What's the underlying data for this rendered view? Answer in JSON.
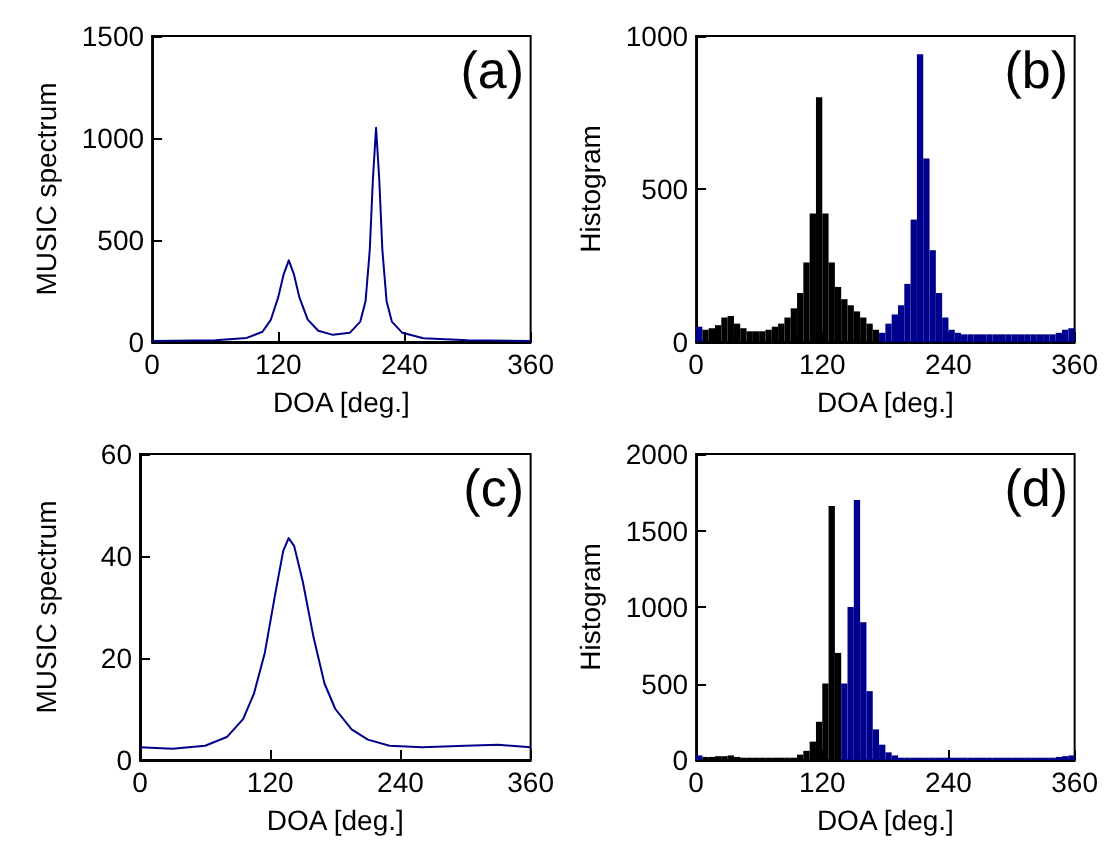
{
  "chart_data": [
    {
      "type": "line",
      "annotations": [
        "(a)"
      ],
      "xlabel": "DOA [deg.]",
      "ylabel": "MUSIC spectrum",
      "xlim": [
        0,
        360
      ],
      "xticks": [
        0,
        120,
        240,
        360
      ],
      "ylim": [
        0,
        1500
      ],
      "yticks": [
        0,
        500,
        1000,
        1500
      ],
      "marker": "none",
      "line_style": "solid",
      "x": [
        0,
        60,
        90,
        105,
        113,
        120,
        125,
        130,
        135,
        140,
        148,
        158,
        172,
        188,
        198,
        203,
        207,
        210,
        213,
        216,
        219,
        223,
        228,
        238,
        258,
        300,
        360
      ],
      "series": [
        {
          "color": "#00008b",
          "values": [
            5,
            8,
            20,
            50,
            110,
            220,
            330,
            400,
            330,
            220,
            110,
            55,
            35,
            45,
            100,
            200,
            450,
            800,
            1050,
            800,
            450,
            200,
            100,
            45,
            18,
            8,
            5
          ]
        }
      ]
    },
    {
      "type": "histogram",
      "annotations": [
        "(b)"
      ],
      "xlabel": "DOA [deg.]",
      "ylabel": "Histogram",
      "xlim": [
        0,
        360
      ],
      "xticks": [
        0,
        120,
        240,
        360
      ],
      "ylim": [
        0,
        1000
      ],
      "yticks": [
        0,
        500,
        1000
      ],
      "bins": [
        0,
        6,
        12,
        18,
        24,
        30,
        36,
        42,
        48,
        54,
        60,
        66,
        72,
        78,
        84,
        90,
        96,
        102,
        108,
        114,
        120,
        126,
        132,
        138,
        144,
        150,
        156,
        162,
        168,
        174,
        180,
        186,
        192,
        198,
        204,
        210,
        216,
        222,
        228,
        234,
        240,
        246,
        252,
        258,
        264,
        270,
        276,
        282,
        288,
        294,
        300,
        306,
        312,
        318,
        324,
        330,
        336,
        342,
        348,
        354,
        360
      ],
      "series": [
        {
          "color": "#000000",
          "values": [
            null,
            40,
            45,
            55,
            80,
            85,
            60,
            45,
            35,
            35,
            35,
            40,
            50,
            60,
            80,
            110,
            160,
            260,
            420,
            800,
            420,
            260,
            180,
            140,
            120,
            100,
            80,
            60,
            40,
            null,
            null,
            null,
            null,
            null,
            null,
            null,
            null,
            null,
            null,
            null,
            null,
            null,
            null,
            null,
            null,
            null,
            null,
            null,
            null,
            null,
            null,
            null,
            null,
            null,
            null,
            null,
            null,
            null,
            null,
            null
          ]
        },
        {
          "color": "#00008f",
          "values": [
            50,
            null,
            null,
            null,
            null,
            null,
            null,
            null,
            null,
            null,
            null,
            null,
            null,
            null,
            null,
            null,
            null,
            null,
            null,
            null,
            null,
            null,
            null,
            null,
            null,
            null,
            null,
            null,
            null,
            30,
            60,
            90,
            120,
            190,
            400,
            940,
            600,
            300,
            160,
            80,
            40,
            30,
            25,
            25,
            25,
            25,
            25,
            25,
            25,
            25,
            25,
            25,
            25,
            25,
            25,
            25,
            25,
            30,
            40,
            45
          ]
        }
      ]
    },
    {
      "type": "line",
      "annotations": [
        "(c)"
      ],
      "xlabel": "DOA [deg.]",
      "ylabel": "MUSIC spectrum",
      "xlim": [
        0,
        360
      ],
      "xticks": [
        0,
        120,
        240,
        360
      ],
      "ylim": [
        0,
        60
      ],
      "yticks": [
        0,
        20,
        40,
        60
      ],
      "marker": "none",
      "line_style": "solid",
      "x": [
        0,
        30,
        60,
        80,
        95,
        105,
        115,
        125,
        132,
        137,
        142,
        150,
        160,
        170,
        180,
        195,
        210,
        230,
        260,
        300,
        330,
        360
      ],
      "series": [
        {
          "color": "#00008b",
          "values": [
            2.5,
            2.2,
            2.8,
            4.5,
            8,
            13,
            21,
            33,
            41,
            43.5,
            42,
            35,
            24,
            15,
            10,
            6,
            4,
            2.8,
            2.5,
            2.8,
            3,
            2.5
          ]
        }
      ]
    },
    {
      "type": "histogram",
      "annotations": [
        "(d)"
      ],
      "xlabel": "DOA [deg.]",
      "ylabel": "Histogram",
      "xlim": [
        0,
        360
      ],
      "xticks": [
        0,
        120,
        240,
        360
      ],
      "ylim": [
        0,
        2000
      ],
      "yticks": [
        0,
        500,
        1000,
        1500,
        2000
      ],
      "bins": [
        0,
        6,
        12,
        18,
        24,
        30,
        36,
        42,
        48,
        54,
        60,
        66,
        72,
        78,
        84,
        90,
        96,
        102,
        108,
        114,
        120,
        126,
        132,
        138,
        144,
        150,
        156,
        162,
        168,
        174,
        180,
        186,
        192,
        198,
        204,
        210,
        216,
        222,
        228,
        234,
        240,
        246,
        252,
        258,
        264,
        270,
        276,
        282,
        288,
        294,
        300,
        306,
        312,
        318,
        324,
        330,
        336,
        342,
        348,
        354,
        360
      ],
      "series": [
        {
          "color": "#000000",
          "values": [
            null,
            20,
            20,
            25,
            25,
            30,
            20,
            15,
            15,
            15,
            15,
            15,
            15,
            15,
            15,
            15,
            35,
            60,
            120,
            250,
            500,
            1660,
            700,
            null,
            null,
            null,
            null,
            null,
            null,
            null,
            null,
            null,
            null,
            null,
            null,
            null,
            null,
            null,
            null,
            null,
            null,
            null,
            null,
            null,
            null,
            null,
            null,
            null,
            null,
            null,
            null,
            null,
            null,
            null,
            null,
            null,
            null,
            null,
            null,
            null
          ]
        },
        {
          "color": "#00008f",
          "values": [
            30,
            null,
            null,
            null,
            null,
            null,
            null,
            null,
            null,
            null,
            null,
            null,
            null,
            null,
            null,
            null,
            null,
            null,
            null,
            null,
            null,
            null,
            null,
            500,
            1000,
            1700,
            900,
            450,
            200,
            100,
            50,
            30,
            15,
            15,
            15,
            15,
            15,
            15,
            15,
            15,
            15,
            15,
            15,
            15,
            15,
            15,
            15,
            15,
            15,
            15,
            15,
            15,
            15,
            15,
            15,
            15,
            15,
            20,
            25,
            30
          ]
        }
      ]
    }
  ]
}
